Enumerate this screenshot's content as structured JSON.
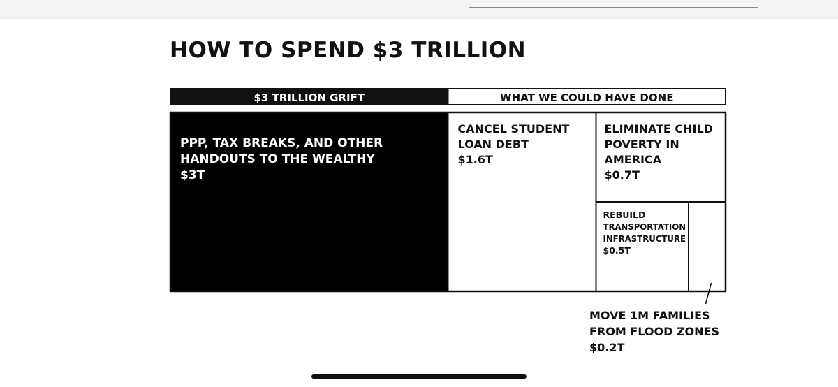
{
  "chart_data": {
    "type": "treemap",
    "title": "HOW TO SPEND $3 TRILLION",
    "headers": [
      {
        "label": "$3 TRILLION GRIFT",
        "total": 3
      },
      {
        "label": "WHAT WE COULD HAVE DONE",
        "total": 3
      }
    ],
    "unit": "T",
    "left_block": {
      "lines": [
        "PPP, TAX BREAKS, AND OTHER",
        "HANDOUTS TO THE WEALTHY"
      ],
      "value_label": "$3T",
      "value": 3.0,
      "color": "#000000"
    },
    "right_blocks": [
      {
        "lines": [
          "CANCEL STUDENT",
          "LOAN DEBT"
        ],
        "value_label": "$1.6T",
        "value": 1.6
      },
      {
        "lines": [
          "ELIMINATE CHILD",
          "POVERTY IN",
          "AMERICA"
        ],
        "value_label": "$0.7T",
        "value": 0.7
      },
      {
        "lines": [
          "REBUILD",
          "TRANSPORTATION",
          "INFRASTRUCTURE"
        ],
        "value_label": "$0.5T",
        "value": 0.5
      },
      {
        "lines": [
          "MOVE 1M FAMILIES",
          "FROM FLOOD ZONES"
        ],
        "value_label": "$0.2T",
        "value": 0.2,
        "callout": true
      }
    ],
    "colors": {
      "ink": "#111111",
      "grift_fill": "#000000",
      "paper": "#ffffff"
    }
  }
}
